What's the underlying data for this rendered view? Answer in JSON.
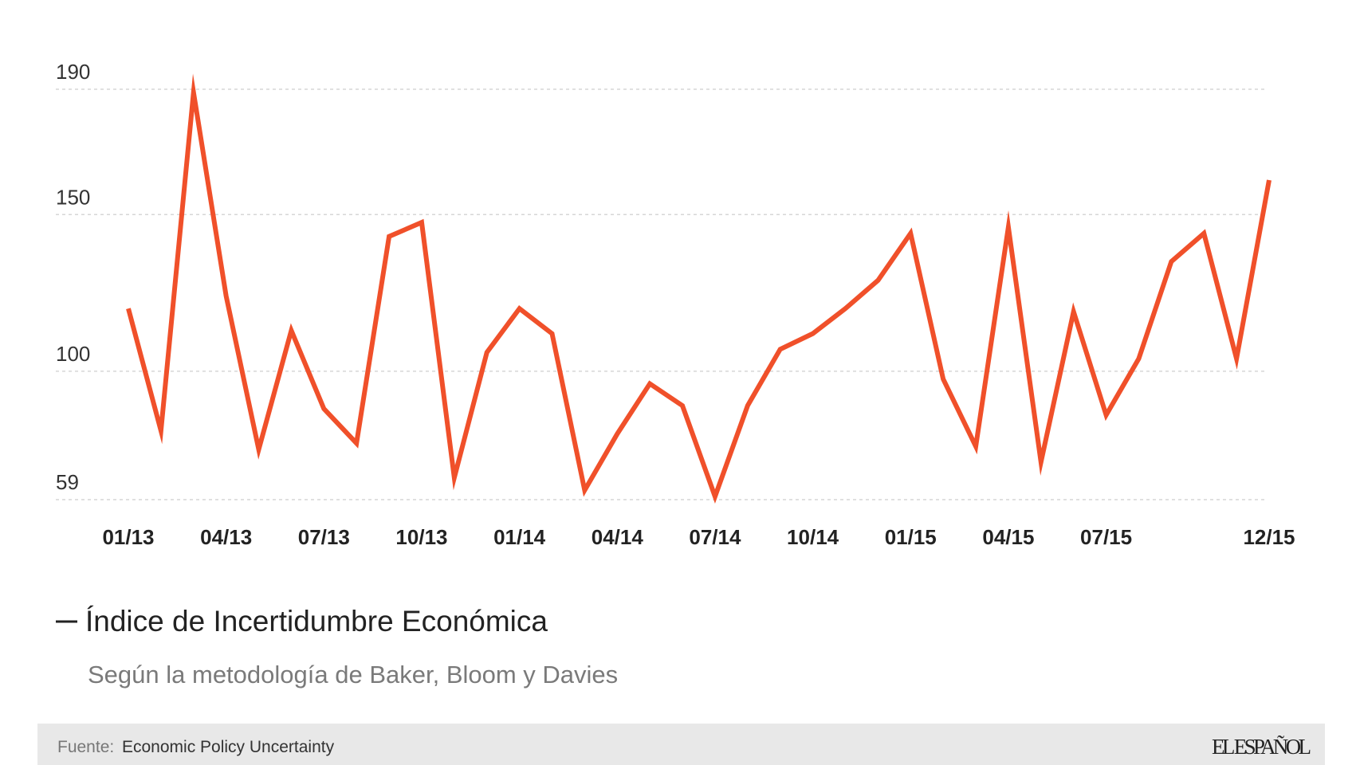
{
  "chart_data": {
    "type": "line",
    "categories": [
      "01/13",
      null,
      null,
      "04/13",
      null,
      null,
      "07/13",
      null,
      null,
      "10/13",
      null,
      null,
      "01/14",
      null,
      null,
      "04/14",
      null,
      null,
      "07/14",
      null,
      null,
      "10/14",
      null,
      null,
      "01/15",
      null,
      null,
      "04/15",
      null,
      null,
      "07/15",
      null,
      null,
      null,
      null,
      "12/15"
    ],
    "series": [
      {
        "name": "Índice de Incertidumbre Económica",
        "color": "#f0502a",
        "values": [
          120,
          81,
          189,
          124,
          75,
          113,
          88,
          77,
          143,
          147.5,
          66,
          106,
          120,
          112,
          62,
          80,
          96,
          89,
          60,
          89,
          107,
          112,
          120,
          129,
          144,
          97.5,
          76,
          146,
          71,
          119,
          86,
          104,
          135,
          144,
          104,
          161
        ]
      }
    ],
    "subtitle": "Según la metodología de Baker, Bloom y Davies",
    "ylim": [
      59,
      190
    ],
    "yticks": [
      59,
      100,
      150,
      190
    ],
    "grid": true
  },
  "footer": {
    "source_label": "Fuente:",
    "source": "Economic Policy Uncertainty",
    "logo": "EL ESPAÑOL"
  }
}
